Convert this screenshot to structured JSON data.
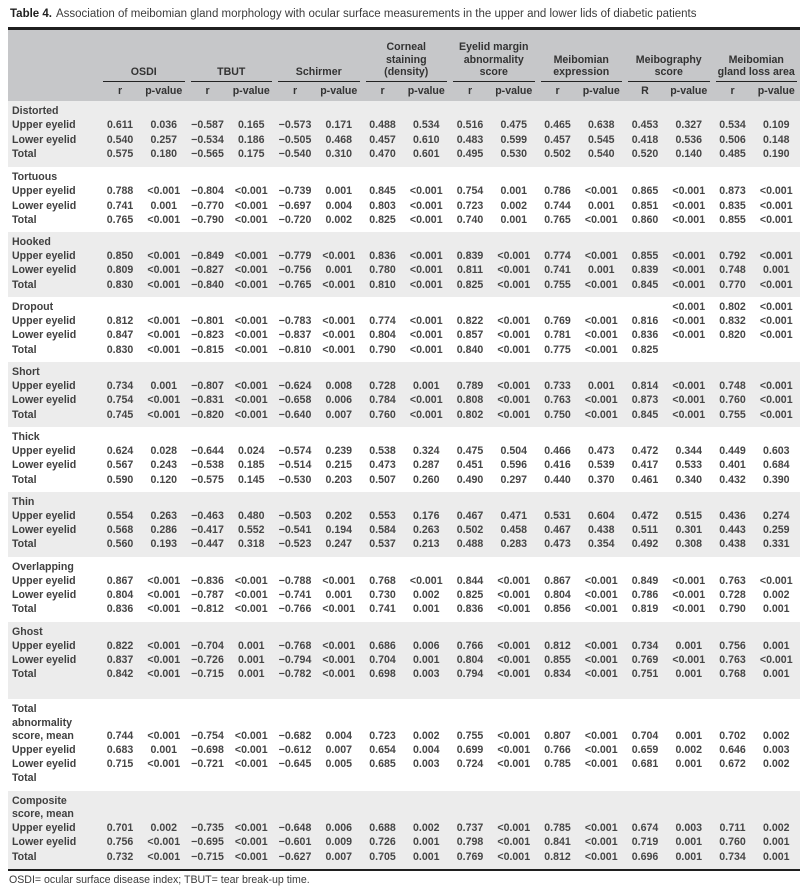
{
  "title": {
    "prefix": "Table 4.",
    "text": "Association of meibomian gland morphology with ocular surface measurements in the upper and lower lids of diabetic patients"
  },
  "footnote": "OSDI= ocular surface disease index; TBUT= tear break-up time.",
  "header": {
    "groups": [
      {
        "label": "OSDI",
        "sub": [
          "r",
          "p-value"
        ]
      },
      {
        "label": "TBUT",
        "sub": [
          "r",
          "p-value"
        ]
      },
      {
        "label": "Schirmer",
        "sub": [
          "r",
          "p-value"
        ]
      },
      {
        "label": "Corneal staining (density)",
        "sub": [
          "r",
          "p-value"
        ]
      },
      {
        "label": "Eyelid margin abnormality score",
        "sub": [
          "r",
          "p-value"
        ]
      },
      {
        "label": "Meibomian expression",
        "sub": [
          "r",
          "p-value"
        ]
      },
      {
        "label": "Meibography score",
        "sub": [
          "R",
          "p-value"
        ]
      },
      {
        "label": "Meibomian gland loss area",
        "sub": [
          "r",
          "p-value"
        ]
      }
    ]
  },
  "colors": {
    "header_bg": "#c6c7c9",
    "band_bg": "#ececec",
    "rule": "#1f1f1f"
  },
  "sections": [
    {
      "label": "Distorted",
      "shaded": true,
      "head_values": [],
      "rows": [
        {
          "label": "Upper eyelid",
          "values": [
            "0.611",
            "0.036",
            "−0.587",
            "0.165",
            "−0.573",
            "0.171",
            "0.488",
            "0.534",
            "0.516",
            "0.475",
            "0.465",
            "0.638",
            "0.453",
            "0.327",
            "0.534",
            "0.109"
          ]
        },
        {
          "label": "Lower eyelid",
          "values": [
            "0.540",
            "0.257",
            "−0.534",
            "0.186",
            "−0.505",
            "0.468",
            "0.457",
            "0.610",
            "0.483",
            "0.599",
            "0.457",
            "0.545",
            "0.418",
            "0.536",
            "0.506",
            "0.148"
          ]
        },
        {
          "label": "Total",
          "values": [
            "0.575",
            "0.180",
            "−0.565",
            "0.175",
            "−0.540",
            "0.310",
            "0.470",
            "0.601",
            "0.495",
            "0.530",
            "0.502",
            "0.540",
            "0.520",
            "0.140",
            "0.485",
            "0.190"
          ]
        }
      ]
    },
    {
      "label": "Tortuous",
      "shaded": false,
      "head_values": [],
      "rows": [
        {
          "label": "Upper eyelid",
          "values": [
            "0.788",
            "<0.001",
            "−0.804",
            "<0.001",
            "−0.739",
            "0.001",
            "0.845",
            "<0.001",
            "0.754",
            "0.001",
            "0.786",
            "<0.001",
            "0.865",
            "<0.001",
            "0.873",
            "<0.001"
          ]
        },
        {
          "label": "Lower eyelid",
          "values": [
            "0.741",
            "0.001",
            "−0.770",
            "<0.001",
            "−0.697",
            "0.004",
            "0.803",
            "<0.001",
            "0.723",
            "0.002",
            "0.744",
            "0.001",
            "0.851",
            "<0.001",
            "0.835",
            "<0.001"
          ]
        },
        {
          "label": "Total",
          "values": [
            "0.765",
            "<0.001",
            "−0.790",
            "<0.001",
            "−0.720",
            "0.002",
            "0.825",
            "<0.001",
            "0.740",
            "0.001",
            "0.765",
            "<0.001",
            "0.860",
            "<0.001",
            "0.855",
            "<0.001"
          ]
        }
      ]
    },
    {
      "label": "Hooked",
      "shaded": true,
      "head_values": [],
      "rows": [
        {
          "label": "Upper eyelid",
          "values": [
            "0.850",
            "<0.001",
            "−0.849",
            "<0.001",
            "−0.779",
            "<0.001",
            "0.836",
            "<0.001",
            "0.839",
            "<0.001",
            "0.774",
            "<0.001",
            "0.855",
            "<0.001",
            "0.792",
            "<0.001"
          ]
        },
        {
          "label": "Lower eyelid",
          "values": [
            "0.809",
            "<0.001",
            "−0.827",
            "<0.001",
            "−0.756",
            "0.001",
            "0.780",
            "<0.001",
            "0.811",
            "<0.001",
            "0.741",
            "0.001",
            "0.839",
            "<0.001",
            "0.748",
            "0.001"
          ]
        },
        {
          "label": "Total",
          "values": [
            "0.830",
            "<0.001",
            "−0.840",
            "<0.001",
            "−0.765",
            "<0.001",
            "0.810",
            "<0.001",
            "0.825",
            "<0.001",
            "0.755",
            "<0.001",
            "0.845",
            "<0.001",
            "0.770",
            "<0.001"
          ]
        }
      ]
    },
    {
      "label": "Dropout",
      "shaded": false,
      "head_values": [
        "",
        "",
        "",
        "",
        "",
        "",
        "",
        "",
        "",
        "",
        "",
        "",
        "",
        "<0.001",
        "0.802",
        "<0.001"
      ],
      "rows": [
        {
          "label": "Upper eyelid",
          "values": [
            "0.812",
            "<0.001",
            "−0.801",
            "<0.001",
            "−0.783",
            "<0.001",
            "0.774",
            "<0.001",
            "0.822",
            "<0.001",
            "0.769",
            "<0.001",
            "0.816",
            "<0.001",
            "0.832",
            "<0.001"
          ]
        },
        {
          "label": "Lower eyelid",
          "values": [
            "0.847",
            "<0.001",
            "−0.823",
            "<0.001",
            "−0.837",
            "<0.001",
            "0.804",
            "<0.001",
            "0.857",
            "<0.001",
            "0.781",
            "<0.001",
            "0.836",
            "<0.001",
            "0.820",
            "<0.001"
          ]
        },
        {
          "label": "Total",
          "values": [
            "0.830",
            "<0.001",
            "−0.815",
            "<0.001",
            "−0.810",
            "<0.001",
            "0.790",
            "<0.001",
            "0.840",
            "<0.001",
            "0.775",
            "<0.001",
            "0.825",
            "",
            "",
            ""
          ]
        }
      ]
    },
    {
      "label": "Short",
      "shaded": true,
      "head_values": [],
      "rows": [
        {
          "label": "Upper eyelid",
          "values": [
            "0.734",
            "0.001",
            "−0.807",
            "<0.001",
            "−0.624",
            "0.008",
            "0.728",
            "0.001",
            "0.789",
            "<0.001",
            "0.733",
            "0.001",
            "0.814",
            "<0.001",
            "0.748",
            "<0.001"
          ]
        },
        {
          "label": "Lower eyelid",
          "values": [
            "0.754",
            "<0.001",
            "−0.831",
            "<0.001",
            "−0.658",
            "0.006",
            "0.784",
            "<0.001",
            "0.808",
            "<0.001",
            "0.763",
            "<0.001",
            "0.873",
            "<0.001",
            "0.760",
            "<0.001"
          ]
        },
        {
          "label": "Total",
          "values": [
            "0.745",
            "<0.001",
            "−0.820",
            "<0.001",
            "−0.640",
            "0.007",
            "0.760",
            "<0.001",
            "0.802",
            "<0.001",
            "0.750",
            "<0.001",
            "0.845",
            "<0.001",
            "0.755",
            "<0.001"
          ]
        }
      ]
    },
    {
      "label": "Thick",
      "shaded": false,
      "head_values": [],
      "rows": [
        {
          "label": "Upper eyelid",
          "values": [
            "0.624",
            "0.028",
            "−0.644",
            "0.024",
            "−0.574",
            "0.239",
            "0.538",
            "0.324",
            "0.475",
            "0.504",
            "0.466",
            "0.473",
            "0.472",
            "0.344",
            "0.449",
            "0.603"
          ]
        },
        {
          "label": "Lower eyelid",
          "values": [
            "0.567",
            "0.243",
            "−0.538",
            "0.185",
            "−0.514",
            "0.215",
            "0.473",
            "0.287",
            "0.451",
            "0.596",
            "0.416",
            "0.539",
            "0.417",
            "0.533",
            "0.401",
            "0.684"
          ]
        },
        {
          "label": "Total",
          "values": [
            "0.590",
            "0.120",
            "−0.575",
            "0.145",
            "−0.530",
            "0.203",
            "0.507",
            "0.260",
            "0.490",
            "0.297",
            "0.440",
            "0.370",
            "0.461",
            "0.340",
            "0.432",
            "0.390"
          ]
        }
      ]
    },
    {
      "label": "Thin",
      "shaded": true,
      "head_values": [],
      "rows": [
        {
          "label": "Upper eyelid",
          "values": [
            "0.554",
            "0.263",
            "−0.463",
            "0.480",
            "−0.503",
            "0.202",
            "0.553",
            "0.176",
            "0.467",
            "0.471",
            "0.531",
            "0.604",
            "0.472",
            "0.515",
            "0.436",
            "0.274"
          ]
        },
        {
          "label": "Lower eyelid",
          "values": [
            "0.568",
            "0.286",
            "−0.417",
            "0.552",
            "−0.541",
            "0.194",
            "0.584",
            "0.263",
            "0.502",
            "0.458",
            "0.467",
            "0.438",
            "0.511",
            "0.301",
            "0.443",
            "0.259"
          ]
        },
        {
          "label": "Total",
          "values": [
            "0.560",
            "0.193",
            "−0.447",
            "0.318",
            "−0.523",
            "0.247",
            "0.537",
            "0.213",
            "0.488",
            "0.283",
            "0.473",
            "0.354",
            "0.492",
            "0.308",
            "0.438",
            "0.331"
          ]
        }
      ]
    },
    {
      "label": "Overlapping",
      "shaded": false,
      "head_values": [],
      "rows": [
        {
          "label": "Upper eyelid",
          "values": [
            "0.867",
            "<0.001",
            "−0.836",
            "<0.001",
            "−0.788",
            "<0.001",
            "0.768",
            "<0.001",
            "0.844",
            "<0.001",
            "0.867",
            "<0.001",
            "0.849",
            "<0.001",
            "0.763",
            "<0.001"
          ]
        },
        {
          "label": "Lower eyelid",
          "values": [
            "0.804",
            "<0.001",
            "−0.787",
            "<0.001",
            "−0.741",
            "0.001",
            "0.730",
            "0.002",
            "0.825",
            "<0.001",
            "0.804",
            "<0.001",
            "0.786",
            "<0.001",
            "0.728",
            "0.002"
          ]
        },
        {
          "label": "Total",
          "values": [
            "0.836",
            "<0.001",
            "−0.812",
            "<0.001",
            "−0.766",
            "<0.001",
            "0.741",
            "0.001",
            "0.836",
            "<0.001",
            "0.856",
            "<0.001",
            "0.819",
            "<0.001",
            "0.790",
            "0.001"
          ]
        }
      ]
    },
    {
      "label": "Ghost",
      "shaded": true,
      "head_values": [],
      "rows": [
        {
          "label": "Upper eyelid",
          "values": [
            "0.822",
            "<0.001",
            "−0.704",
            "0.001",
            "−0.768",
            "<0.001",
            "0.686",
            "0.006",
            "0.766",
            "<0.001",
            "0.812",
            "<0.001",
            "0.734",
            "0.001",
            "0.756",
            "0.001"
          ]
        },
        {
          "label": "Lower eyelid",
          "values": [
            "0.837",
            "<0.001",
            "−0.726",
            "0.001",
            "−0.794",
            "<0.001",
            "0.704",
            "0.001",
            "0.804",
            "<0.001",
            "0.855",
            "<0.001",
            "0.769",
            "<0.001",
            "0.763",
            "<0.001"
          ]
        },
        {
          "label": "Total",
          "values": [
            "0.842",
            "<0.001",
            "−0.715",
            "0.001",
            "−0.782",
            "<0.001",
            "0.698",
            "0.003",
            "0.794",
            "<0.001",
            "0.834",
            "<0.001",
            "0.751",
            "0.001",
            "0.768",
            "0.001"
          ]
        }
      ]
    },
    {
      "label": "Total abnormality score, mean",
      "shaded": false,
      "head_values": [
        "0.744",
        "<0.001",
        "−0.754",
        "<0.001",
        "−0.682",
        "0.004",
        "0.723",
        "0.002",
        "0.755",
        "<0.001",
        "0.807",
        "<0.001",
        "0.704",
        "0.001",
        "0.702",
        "0.002"
      ],
      "rows": [
        {
          "label": "Upper eyelid",
          "values": [
            "0.683",
            "0.001",
            "−0.698",
            "<0.001",
            "−0.612",
            "0.007",
            "0.654",
            "0.004",
            "0.699",
            "<0.001",
            "0.766",
            "<0.001",
            "0.659",
            "0.002",
            "0.646",
            "0.003"
          ]
        },
        {
          "label": "Lower eyelid",
          "values": [
            "0.715",
            "<0.001",
            "−0.721",
            "<0.001",
            "−0.645",
            "0.005",
            "0.685",
            "0.003",
            "0.724",
            "<0.001",
            "0.785",
            "<0.001",
            "0.681",
            "0.001",
            "0.672",
            "0.002"
          ]
        },
        {
          "label": "Total",
          "values": [
            "",
            "",
            "",
            "",
            "",
            "",
            "",
            "",
            "",
            "",
            "",
            "",
            "",
            "",
            "",
            ""
          ]
        }
      ]
    },
    {
      "label": "Composite score, mean",
      "shaded": true,
      "head_values": [],
      "rows": [
        {
          "label": "Upper eyelid",
          "values": [
            "0.701",
            "0.002",
            "−0.735",
            "<0.001",
            "−0.648",
            "0.006",
            "0.688",
            "0.002",
            "0.737",
            "<0.001",
            "0.785",
            "<0.001",
            "0.674",
            "0.003",
            "0.711",
            "0.002"
          ]
        },
        {
          "label": "Lower eyelid",
          "values": [
            "0.756",
            "<0.001",
            "−0.695",
            "<0.001",
            "−0.601",
            "0.009",
            "0.726",
            "0.001",
            "0.798",
            "<0.001",
            "0.841",
            "<0.001",
            "0.719",
            "0.001",
            "0.760",
            "0.001"
          ]
        },
        {
          "label": "Total",
          "values": [
            "0.732",
            "<0.001",
            "−0.715",
            "<0.001",
            "−0.627",
            "0.007",
            "0.705",
            "0.001",
            "0.769",
            "<0.001",
            "0.812",
            "<0.001",
            "0.696",
            "0.001",
            "0.734",
            "0.001"
          ]
        }
      ]
    }
  ]
}
